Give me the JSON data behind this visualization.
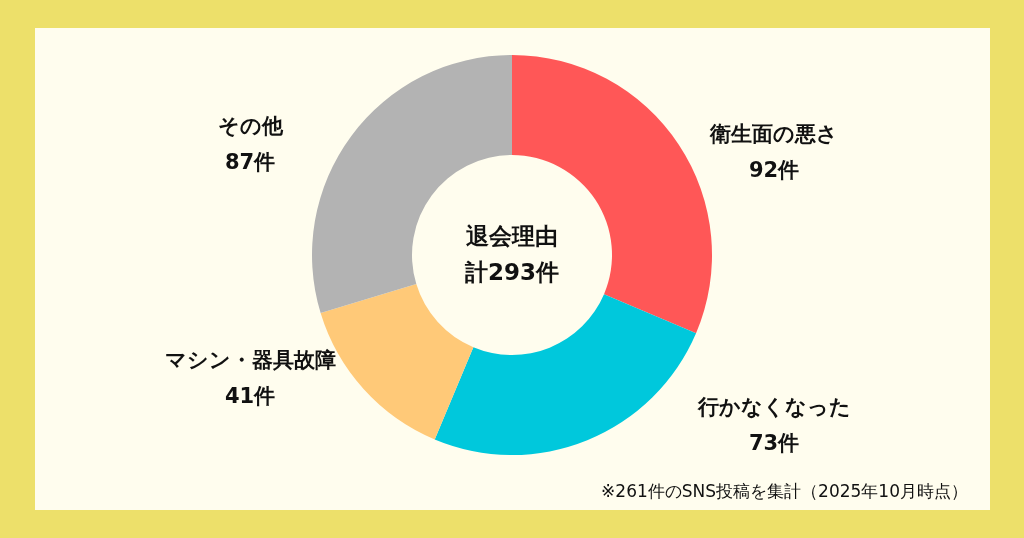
{
  "chart_data": {
    "type": "donut",
    "title": "退会理由",
    "subtitle": "計293件",
    "categories": [
      "衛生面の悪さ",
      "行かなくなった",
      "マシン・器具故障",
      "その他"
    ],
    "values": [
      92,
      73,
      41,
      87
    ],
    "value_labels": [
      "92件",
      "73件",
      "41件",
      "87件"
    ],
    "colors": [
      "#ff5757",
      "#00c8dc",
      "#ffc978",
      "#b3b3b3"
    ],
    "annotations": [
      "※261件のSNS投稿を集計（2025年10月時点）"
    ]
  }
}
